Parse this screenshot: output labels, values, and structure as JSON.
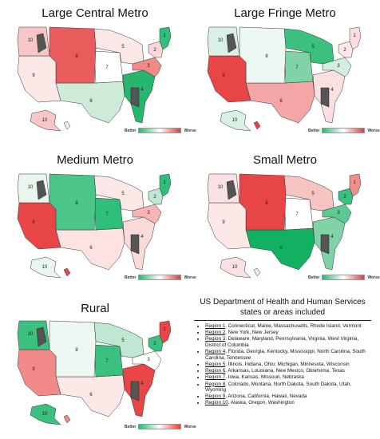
{
  "legend": {
    "better": "Better",
    "worse": "Worse"
  },
  "colors": {
    "better": "#1fbf6f",
    "neutral": "#ffffff",
    "worse": "#e83a3a",
    "excluded": "#555555"
  },
  "maps": [
    {
      "title": "Large Central Metro",
      "regions": [
        {
          "id": 1,
          "label": "1",
          "color": "#2fbf7a"
        },
        {
          "id": 2,
          "label": "2",
          "color": "#fbd7d7"
        },
        {
          "id": 3,
          "label": "3",
          "color": "#f28a8a"
        },
        {
          "id": 4,
          "label": "4",
          "color": "#28b66f"
        },
        {
          "id": 5,
          "label": "5",
          "color": "#fde8e8"
        },
        {
          "id": 6,
          "label": "6",
          "color": "#cdebd9"
        },
        {
          "id": 7,
          "label": "7",
          "color": "#ffffff"
        },
        {
          "id": 8,
          "label": "8",
          "color": "#ea5c5c"
        },
        {
          "id": 9,
          "label": "9",
          "color": "#fde8e8"
        },
        {
          "id": 10,
          "label": "10",
          "color": "#f8c6c6"
        }
      ]
    },
    {
      "title": "Large Fringe Metro",
      "regions": [
        {
          "id": 1,
          "label": "1",
          "color": "#fbdede"
        },
        {
          "id": 2,
          "label": "2",
          "color": "#fde8e8"
        },
        {
          "id": 3,
          "label": "3",
          "color": "#d3eedf"
        },
        {
          "id": 4,
          "label": "4",
          "color": "#fbe0e0"
        },
        {
          "id": 5,
          "label": "5",
          "color": "#3cc07f"
        },
        {
          "id": 6,
          "label": "6",
          "color": "#f4a6a6"
        },
        {
          "id": 7,
          "label": "7",
          "color": "#7fd3a6"
        },
        {
          "id": 8,
          "label": "8",
          "color": "#eef8f2"
        },
        {
          "id": 9,
          "label": "9",
          "color": "#e84646"
        },
        {
          "id": 10,
          "label": "10",
          "color": "#d9f1e4"
        }
      ]
    },
    {
      "title": "Medium Metro",
      "regions": [
        {
          "id": 1,
          "label": "1",
          "color": "#2fbf7a"
        },
        {
          "id": 2,
          "label": "2",
          "color": "#bfe7d1"
        },
        {
          "id": 3,
          "label": "3",
          "color": "#f6b4b4"
        },
        {
          "id": 4,
          "label": "4",
          "color": "#fbdada"
        },
        {
          "id": 5,
          "label": "5",
          "color": "#fde8e8"
        },
        {
          "id": 6,
          "label": "6",
          "color": "#fde2e2"
        },
        {
          "id": 7,
          "label": "7",
          "color": "#2fbf7a"
        },
        {
          "id": 8,
          "label": "8",
          "color": "#4cc58a"
        },
        {
          "id": 9,
          "label": "9",
          "color": "#e84646"
        },
        {
          "id": 10,
          "label": "10",
          "color": "#e8f6ee"
        }
      ]
    },
    {
      "title": "Small Metro",
      "regions": [
        {
          "id": 1,
          "label": "1",
          "color": "#f08e8e"
        },
        {
          "id": 2,
          "label": "2",
          "color": "#3cc07f"
        },
        {
          "id": 3,
          "label": "3",
          "color": "#5cc993"
        },
        {
          "id": 4,
          "label": "4",
          "color": "#7fd3a6"
        },
        {
          "id": 5,
          "label": "5",
          "color": "#f7c4c4"
        },
        {
          "id": 6,
          "label": "6",
          "color": "#12b061"
        },
        {
          "id": 7,
          "label": "7",
          "color": "#ffffff"
        },
        {
          "id": 8,
          "label": "8",
          "color": "#e84646"
        },
        {
          "id": 9,
          "label": "9",
          "color": "#fde8e8"
        },
        {
          "id": 10,
          "label": "10",
          "color": "#fbe2e2"
        }
      ]
    },
    {
      "title": "Rural",
      "regions": [
        {
          "id": 1,
          "label": "1",
          "color": "#e84646"
        },
        {
          "id": 2,
          "label": "2",
          "color": "#3cc07f"
        },
        {
          "id": 3,
          "label": "3",
          "color": "#ffffff"
        },
        {
          "id": 4,
          "label": "4",
          "color": "#e84646"
        },
        {
          "id": 5,
          "label": "5",
          "color": "#bfe7d1"
        },
        {
          "id": 6,
          "label": "6",
          "color": "#fde8e8"
        },
        {
          "id": 7,
          "label": "7",
          "color": "#3cc07f"
        },
        {
          "id": 8,
          "label": "8",
          "color": "#eef8f2"
        },
        {
          "id": 9,
          "label": "9",
          "color": "#f28a8a"
        },
        {
          "id": 10,
          "label": "10",
          "color": "#3cc07f"
        }
      ]
    }
  ],
  "info": {
    "title": "US Department of Health and Human Services states or areas included",
    "regions": [
      {
        "name": "Region 1",
        "states": ". Connecticut, Maine, Massachusetts, Rhode Island, Vermont"
      },
      {
        "name": "Region 2",
        "states": ". New York, New Jersey"
      },
      {
        "name": "Region 3",
        "states": ". Delaware, Maryland, Pennsylvania, Virginia, West Virginia, District of Columbia"
      },
      {
        "name": "Region 4",
        "states": ". Florida, Georgia, Kentucky, Mississippi, North Carolina, South Carolina, Tennessee"
      },
      {
        "name": "Region 5",
        "states": ". Illinois, Indiana, Ohio, Michigan, Minnesota, Wisconsin"
      },
      {
        "name": "Region 6",
        "states": ". Arkansas, Louisiana, New Mexico, Oklahoma, Texas"
      },
      {
        "name": "Region 7",
        "states": ". Iowa, Kansas, Missouri, Nebraska"
      },
      {
        "name": "Region 8",
        "states": ". Colorado, Montana, North Dakota, South Dakota, Utah, Wyoming"
      },
      {
        "name": "Region 9",
        "states": ". Arizona, California, Hawaii, Nevada"
      },
      {
        "name": "Region 10",
        "states": ". Alaska, Oregon, Washington"
      }
    ]
  }
}
